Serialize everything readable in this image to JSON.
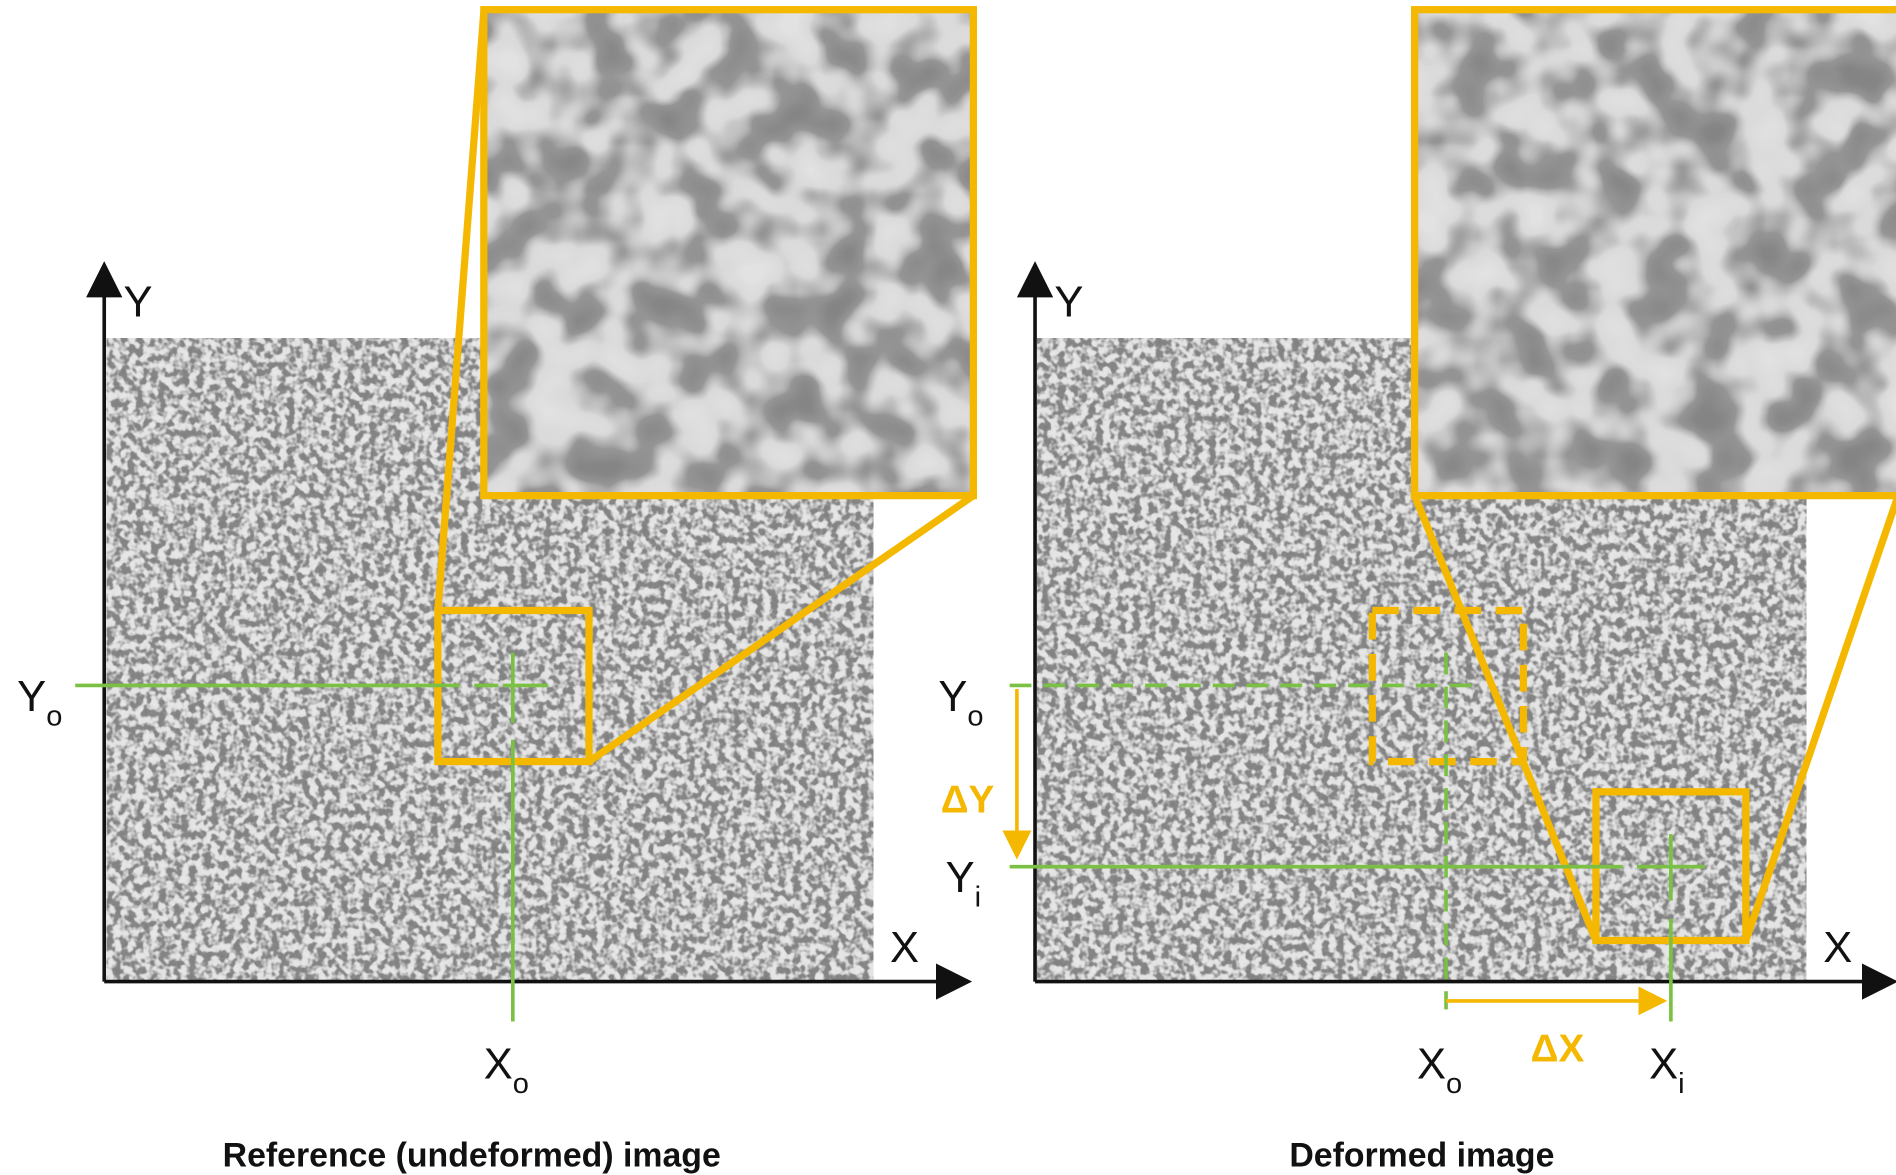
{
  "panels": [
    {
      "caption": "Reference (undeformed) image",
      "axis_y": "Y",
      "axis_x": "X",
      "labels": [
        {
          "main": "Y",
          "sub": "o"
        },
        {
          "main": "X",
          "sub": "o"
        }
      ]
    },
    {
      "caption": "Deformed image",
      "axis_y": "Y",
      "axis_x": "X",
      "labels": [
        {
          "main": "Y",
          "sub": "o"
        },
        {
          "main": "Y",
          "sub": "i"
        },
        {
          "main": "X",
          "sub": "o"
        },
        {
          "main": "X",
          "sub": "i"
        }
      ],
      "delta_y": "ΔY",
      "delta_x": "ΔX"
    }
  ]
}
